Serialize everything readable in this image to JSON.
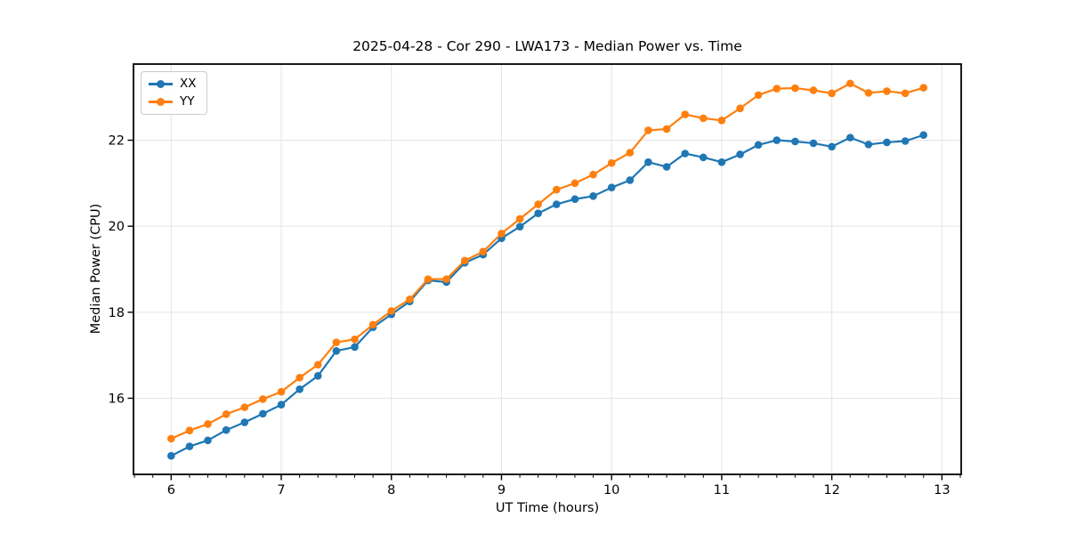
{
  "figure": {
    "background": "#ffffff"
  },
  "chart_data": {
    "type": "line",
    "title": "2025-04-28 - Cor 290 - LWA173 - Median Power vs. Time",
    "xlabel": "UT Time (hours)",
    "ylabel": "Median Power (CPU)",
    "xlim": [
      5.658,
      13.175
    ],
    "ylim": [
      14.23,
      23.77
    ],
    "x_major_ticks": [
      6,
      7,
      8,
      9,
      10,
      11,
      12,
      13
    ],
    "x_minor_tick_step_hours": 0.1667,
    "y_major_ticks": [
      16,
      18,
      20,
      22
    ],
    "grid": "major-both",
    "legend_position": "upper-left",
    "legend_entries": [
      "XX",
      "YY"
    ],
    "x": [
      6.0,
      6.167,
      6.333,
      6.5,
      6.667,
      6.833,
      7.0,
      7.167,
      7.333,
      7.5,
      7.667,
      7.833,
      8.0,
      8.167,
      8.333,
      8.5,
      8.667,
      8.833,
      9.0,
      9.167,
      9.333,
      9.5,
      9.667,
      9.833,
      10.0,
      10.167,
      10.333,
      10.5,
      10.667,
      10.833,
      11.0,
      11.167,
      11.333,
      11.5,
      11.667,
      11.833,
      12.0,
      12.167,
      12.333,
      12.5,
      12.667,
      12.833
    ],
    "series": [
      {
        "name": "XX",
        "color": "#1f77b4",
        "values": [
          14.66,
          14.88,
          15.02,
          15.26,
          15.44,
          15.64,
          15.85,
          16.21,
          16.52,
          17.1,
          17.19,
          17.65,
          17.95,
          18.25,
          18.74,
          18.7,
          19.15,
          19.34,
          19.72,
          19.99,
          20.3,
          20.51,
          20.63,
          20.7,
          20.9,
          21.07,
          21.49,
          21.38,
          21.69,
          21.6,
          21.49,
          21.67,
          21.89,
          22.0,
          21.97,
          21.93,
          21.85,
          22.06,
          21.9,
          21.95,
          21.98,
          22.12
        ]
      },
      {
        "name": "YY",
        "color": "#ff7f0e",
        "values": [
          15.06,
          15.25,
          15.4,
          15.63,
          15.79,
          15.98,
          16.15,
          16.48,
          16.78,
          17.3,
          17.37,
          17.71,
          18.03,
          18.3,
          18.77,
          18.77,
          19.2,
          19.41,
          19.83,
          20.17,
          20.51,
          20.85,
          21.0,
          21.2,
          21.47,
          21.71,
          22.23,
          22.26,
          22.6,
          22.51,
          22.46,
          22.74,
          23.05,
          23.2,
          23.21,
          23.16,
          23.09,
          23.32,
          23.1,
          23.14,
          23.09,
          23.22
        ]
      }
    ],
    "style": {
      "grid_color": "#e4e4e4",
      "spine_color": "#000000",
      "tick_label_color": "#000000",
      "line_width": 2.2,
      "marker": "circle",
      "marker_radius": 4.3
    }
  }
}
